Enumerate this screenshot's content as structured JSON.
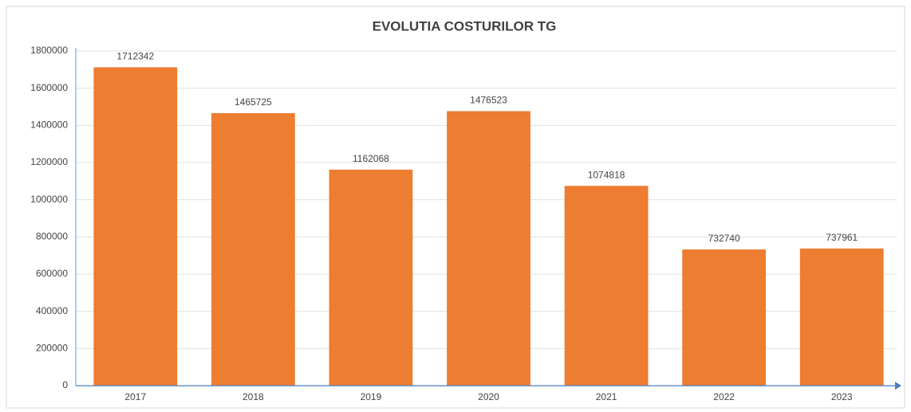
{
  "chart_data": {
    "type": "bar",
    "title": "EVOLUTIA COSTURILOR TG",
    "categories": [
      "2017",
      "2018",
      "2019",
      "2020",
      "2021",
      "2022",
      "2023"
    ],
    "values": [
      1712342,
      1465725,
      1162068,
      1476523,
      1074818,
      732740,
      737961
    ],
    "color": "#ed7d31",
    "ylim": [
      0,
      1800000
    ],
    "yticks": [
      0,
      200000,
      400000,
      600000,
      800000,
      1000000,
      1200000,
      1400000,
      1600000,
      1800000
    ],
    "grid": true
  }
}
